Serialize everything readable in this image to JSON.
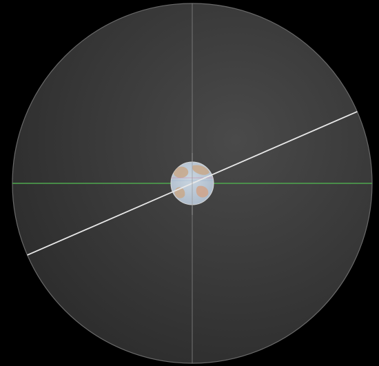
{
  "scene": {
    "background_color": "#000000",
    "disc_colors": {
      "center": "#4a4a4a",
      "edge": "#2a2a2a",
      "rim": "#6a6a6a"
    },
    "crosshair_color": "#8a8a8a",
    "horizon_line_color": "#4fa84f",
    "tilted_line_color": "#e8e8e8",
    "globe_colors": {
      "ocean": "#aab8c8",
      "land": "#c8a98a",
      "rim": "#d8d8d8"
    },
    "tilted_line_angle_deg": -23.5
  }
}
